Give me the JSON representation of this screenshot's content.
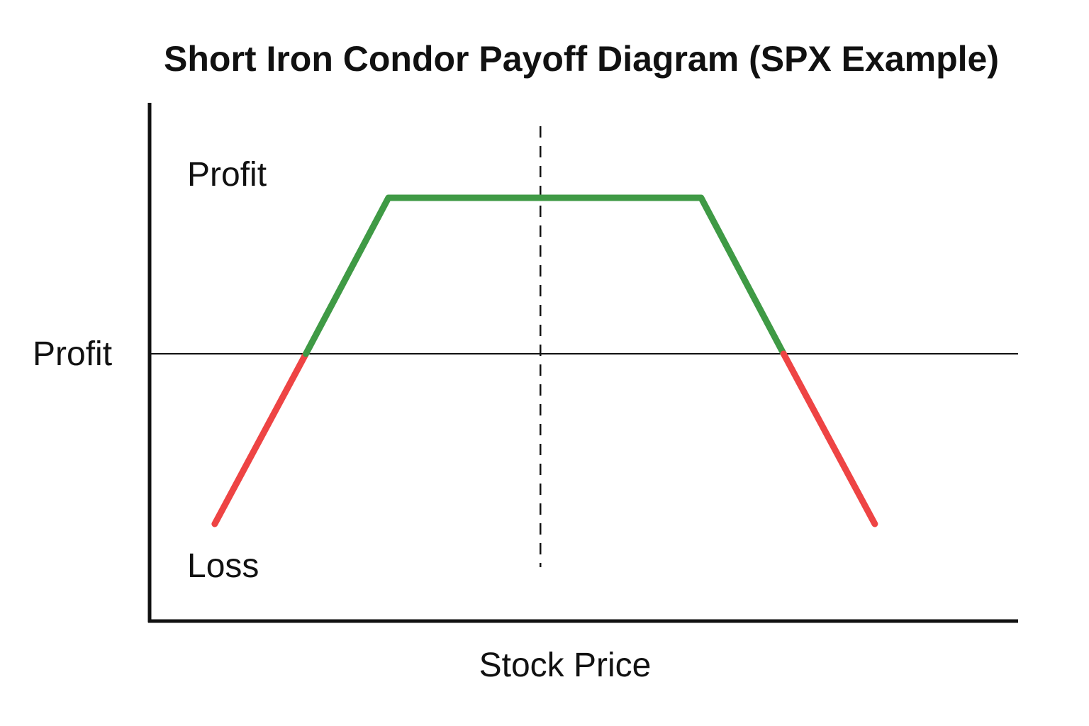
{
  "chart_data": {
    "type": "line",
    "title": "Short Iron Condor Payoff Diagram (SPX Example)",
    "xlabel": "Stock Price",
    "ylabel": "Profit",
    "annotations": {
      "profit_region": "Profit",
      "loss_region": "Loss"
    },
    "xlim": [
      0,
      100
    ],
    "ylim": [
      -100,
      100
    ],
    "reference_x": 45,
    "zero_line": 0,
    "series": [
      {
        "segments": [
          {
            "color": "#ee4444",
            "points": [
              [
                7.5,
                -60
              ],
              [
                18,
                0
              ]
            ]
          },
          {
            "color": "#3f9a45",
            "points": [
              [
                18,
                0
              ],
              [
                27.5,
                55
              ],
              [
                63.5,
                55
              ],
              [
                73,
                0
              ]
            ]
          },
          {
            "color": "#ee4444",
            "points": [
              [
                73,
                0
              ],
              [
                83.5,
                -60
              ]
            ]
          }
        ]
      }
    ],
    "grid": false,
    "legend": "none"
  }
}
